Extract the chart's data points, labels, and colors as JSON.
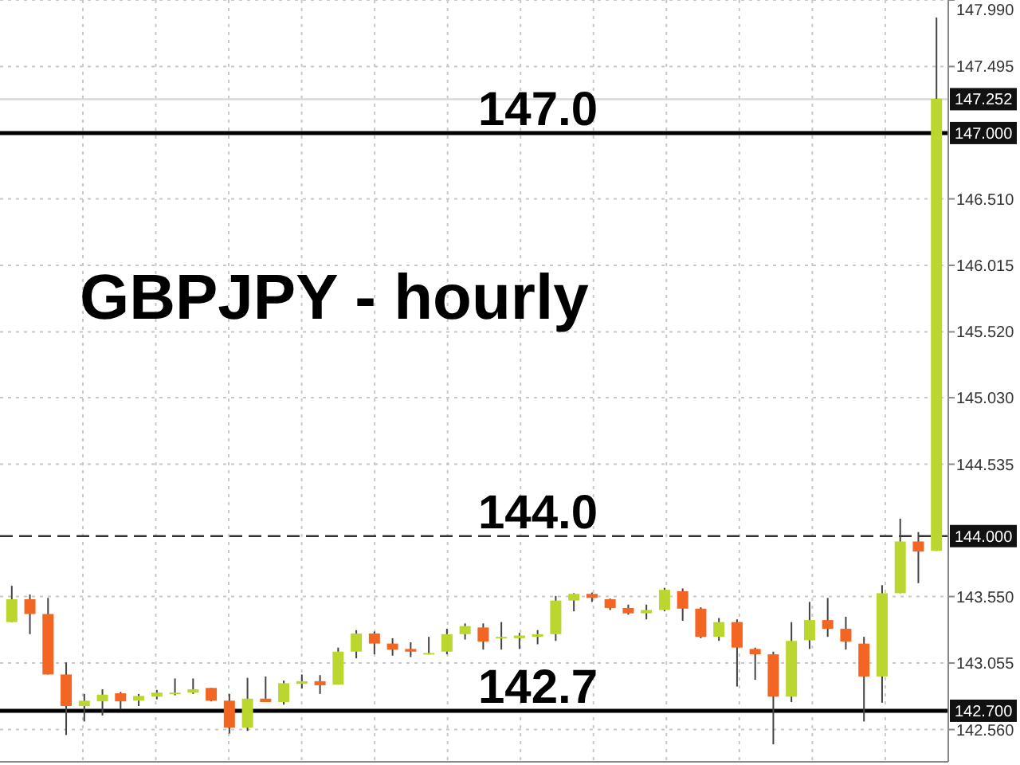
{
  "chart_data": {
    "type": "candlestick",
    "title": "GBPJPY - hourly",
    "categories": [
      null,
      null,
      null,
      null,
      null,
      null,
      null,
      null,
      null,
      null,
      null,
      null,
      null,
      null,
      null,
      null,
      null,
      null,
      null,
      null,
      null,
      null,
      null,
      null,
      null,
      null,
      null,
      null,
      null,
      null,
      null,
      null,
      null,
      null,
      null,
      null,
      null,
      null,
      null,
      null,
      null,
      null,
      null,
      null,
      null,
      null,
      null,
      null,
      null,
      null,
      null,
      null
    ],
    "ohlc": [
      [
        143.36,
        143.63,
        143.36,
        143.53
      ],
      [
        143.53,
        143.565,
        143.27,
        143.42
      ],
      [
        143.42,
        143.54,
        142.97,
        142.97
      ],
      [
        142.97,
        143.06,
        142.52,
        142.735
      ],
      [
        142.735,
        142.825,
        142.62,
        142.775
      ],
      [
        142.77,
        142.86,
        142.665,
        142.82
      ],
      [
        142.83,
        142.84,
        142.71,
        142.77
      ],
      [
        142.775,
        142.825,
        142.735,
        142.81
      ],
      [
        142.805,
        142.855,
        142.785,
        142.835
      ],
      [
        142.835,
        142.94,
        142.815,
        142.835
      ],
      [
        142.835,
        142.94,
        142.825,
        142.86
      ],
      [
        142.87,
        142.87,
        142.77,
        142.775
      ],
      [
        142.775,
        142.825,
        142.53,
        142.575
      ],
      [
        142.575,
        142.945,
        142.55,
        142.79
      ],
      [
        142.79,
        142.955,
        142.765,
        142.765
      ],
      [
        142.765,
        142.925,
        142.745,
        142.905
      ],
      [
        142.9,
        142.97,
        142.865,
        142.92
      ],
      [
        142.92,
        142.965,
        142.825,
        142.89
      ],
      [
        142.895,
        143.17,
        142.895,
        143.14
      ],
      [
        143.14,
        143.3,
        143.09,
        143.275
      ],
      [
        143.275,
        143.29,
        143.12,
        143.2
      ],
      [
        143.2,
        143.24,
        143.11,
        143.155
      ],
      [
        143.16,
        143.21,
        143.1,
        143.14
      ],
      [
        143.13,
        143.25,
        143.12,
        143.13
      ],
      [
        143.14,
        143.31,
        143.12,
        143.27
      ],
      [
        143.27,
        143.35,
        143.23,
        143.33
      ],
      [
        143.32,
        143.35,
        143.155,
        143.215
      ],
      [
        143.25,
        143.36,
        143.155,
        143.25
      ],
      [
        143.24,
        143.28,
        143.16,
        143.26
      ],
      [
        143.25,
        143.3,
        143.195,
        143.27
      ],
      [
        143.27,
        143.555,
        143.22,
        143.52
      ],
      [
        143.52,
        143.575,
        143.44,
        143.57
      ],
      [
        143.57,
        143.58,
        143.51,
        143.54
      ],
      [
        143.53,
        143.535,
        143.45,
        143.465
      ],
      [
        143.465,
        143.49,
        143.415,
        143.425
      ],
      [
        143.425,
        143.49,
        143.38,
        143.45
      ],
      [
        143.45,
        143.615,
        143.44,
        143.6
      ],
      [
        143.59,
        143.61,
        143.37,
        143.46
      ],
      [
        143.46,
        143.47,
        143.24,
        143.25
      ],
      [
        143.25,
        143.39,
        143.22,
        143.36
      ],
      [
        143.36,
        143.38,
        142.88,
        143.17
      ],
      [
        143.16,
        143.17,
        142.93,
        143.12
      ],
      [
        143.12,
        143.14,
        142.45,
        142.805
      ],
      [
        142.805,
        143.36,
        142.765,
        143.22
      ],
      [
        143.225,
        143.51,
        143.16,
        143.375
      ],
      [
        143.375,
        143.54,
        143.25,
        143.31
      ],
      [
        143.31,
        143.4,
        143.155,
        143.215
      ],
      [
        143.2,
        143.25,
        142.62,
        142.955
      ],
      [
        142.955,
        143.635,
        142.76,
        143.575
      ],
      [
        143.575,
        144.13,
        143.575,
        143.96
      ],
      [
        143.96,
        144.03,
        143.65,
        143.885
      ],
      [
        143.89,
        147.86,
        143.89,
        147.255
      ]
    ],
    "colors": [
      "#bcd630",
      "#f26522",
      "#f26522",
      "#f26522",
      "#bcd630",
      "#bcd630",
      "#f26522",
      "#bcd630",
      "#bcd630",
      "#bcd630",
      "#bcd630",
      "#f26522",
      "#f26522",
      "#bcd630",
      "#f26522",
      "#bcd630",
      "#bcd630",
      "#f26522",
      "#bcd630",
      "#bcd630",
      "#f26522",
      "#f26522",
      "#f26522",
      "#bcd630",
      "#bcd630",
      "#bcd630",
      "#f26522",
      "#bcd630",
      "#bcd630",
      "#bcd630",
      "#bcd630",
      "#bcd630",
      "#f26522",
      "#f26522",
      "#f26522",
      "#bcd630",
      "#bcd630",
      "#f26522",
      "#f26522",
      "#bcd630",
      "#f26522",
      "#f26522",
      "#f26522",
      "#bcd630",
      "#bcd630",
      "#f26522",
      "#f26522",
      "#f26522",
      "#bcd630",
      "#bcd630",
      "#f26522",
      "#bcd630"
    ],
    "ylim": [
      142.32,
      147.99
    ],
    "yticks": [
      {
        "value": 142.56,
        "label": "142.560"
      },
      {
        "value": 143.055,
        "label": "143.055"
      },
      {
        "value": 143.55,
        "label": "143.550"
      },
      {
        "value": 144.535,
        "label": "144.535"
      },
      {
        "value": 145.03,
        "label": "145.030"
      },
      {
        "value": 145.52,
        "label": "145.520"
      },
      {
        "value": 146.015,
        "label": "146.015"
      },
      {
        "value": 146.51,
        "label": "146.510"
      },
      {
        "value": 147.495,
        "label": "147.495"
      },
      {
        "value": 147.99,
        "label": "147.990"
      }
    ],
    "grid": true,
    "ref_lines": [
      {
        "axis": "y",
        "value": 147.252,
        "label": "147.252",
        "color": "#d9d9d9",
        "line_style": "solid"
      },
      {
        "axis": "y",
        "value": 147,
        "label": "147.000",
        "color": "#000000",
        "line_style": "solid"
      },
      {
        "axis": "y",
        "value": 144,
        "label": "144.000",
        "color": "#333333",
        "line_style": "dashed"
      },
      {
        "axis": "y",
        "value": 142.7,
        "label": "142.700",
        "color": "#000000",
        "line_style": "solid"
      }
    ],
    "annotations": [
      {
        "text": "147.0",
        "y": 147
      },
      {
        "text": "144.0",
        "y": 144
      },
      {
        "text": "142.7",
        "y": 142.7
      }
    ]
  }
}
